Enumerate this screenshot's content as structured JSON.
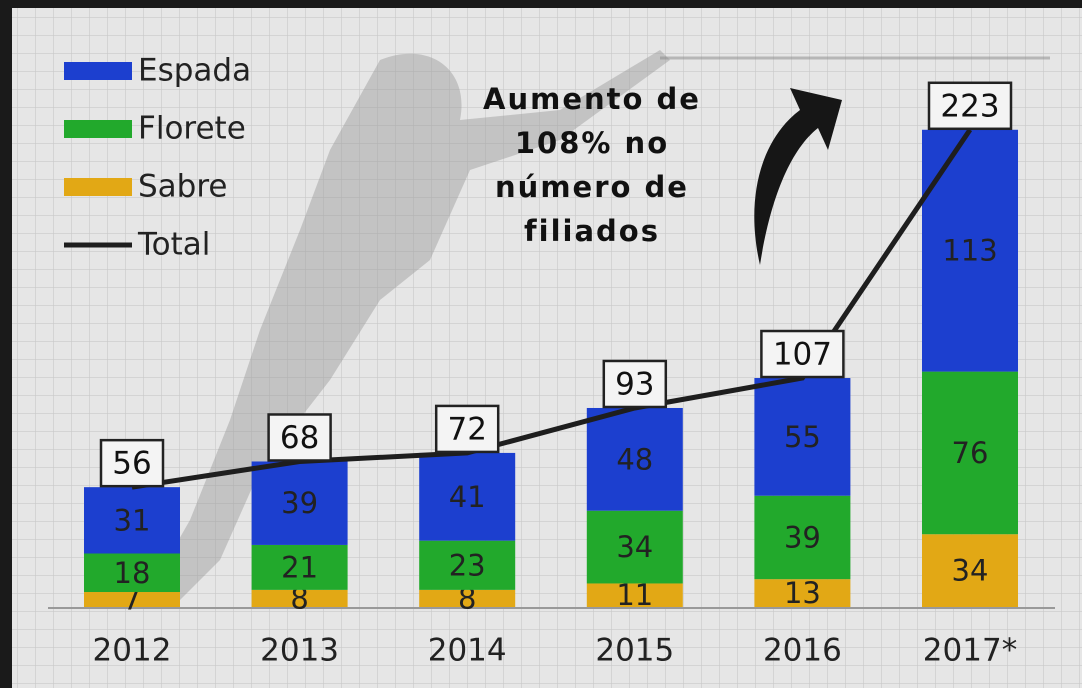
{
  "chart_data": {
    "type": "stacked-bar-line",
    "annotation": [
      "Aumento de",
      "108% no",
      "número de",
      "filiados"
    ],
    "categories": [
      "2012",
      "2013",
      "2014",
      "2015",
      "2016",
      "2017*"
    ],
    "series": [
      {
        "name": "Espada",
        "color": "#1c3fcf",
        "values": [
          31,
          39,
          41,
          48,
          55,
          113
        ]
      },
      {
        "name": "Florete",
        "color": "#22a92c",
        "values": [
          18,
          21,
          23,
          34,
          39,
          76
        ]
      },
      {
        "name": "Sabre",
        "color": "#e2a815",
        "values": [
          7,
          8,
          8,
          11,
          13,
          34
        ]
      },
      {
        "name": "Total",
        "color": "#1e1e1e",
        "type": "line",
        "values": [
          56,
          68,
          72,
          93,
          107,
          223
        ]
      }
    ]
  }
}
